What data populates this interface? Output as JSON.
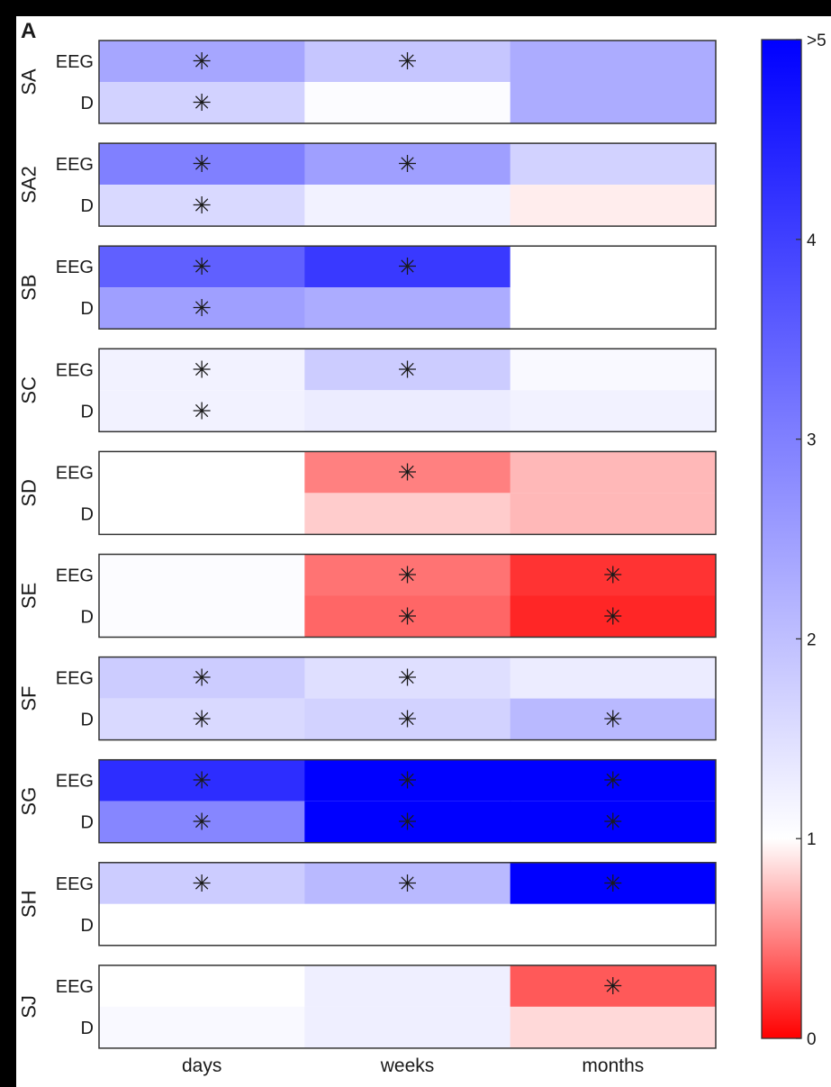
{
  "panel_label": "A",
  "chart_data": {
    "type": "heatmap",
    "columns": [
      "days",
      "weeks",
      "months"
    ],
    "row_labels": [
      "EEG",
      "D"
    ],
    "subjects": [
      {
        "name": "SA",
        "values": [
          [
            2.4,
            1.9,
            2.3
          ],
          [
            1.7,
            1.05,
            2.3
          ]
        ],
        "significant": [
          [
            true,
            true,
            false
          ],
          [
            true,
            false,
            false
          ]
        ]
      },
      {
        "name": "SA2",
        "values": [
          [
            3.0,
            2.5,
            1.7
          ],
          [
            1.6,
            1.2,
            0.93
          ]
        ],
        "significant": [
          [
            true,
            true,
            false
          ],
          [
            true,
            false,
            false
          ]
        ]
      },
      {
        "name": "SB",
        "values": [
          [
            3.5,
            4.1,
            1.0
          ],
          [
            2.5,
            2.3,
            1.0
          ]
        ],
        "significant": [
          [
            true,
            true,
            false
          ],
          [
            true,
            false,
            false
          ]
        ]
      },
      {
        "name": "SC",
        "values": [
          [
            1.2,
            1.8,
            1.1
          ],
          [
            1.2,
            1.3,
            1.2
          ]
        ],
        "significant": [
          [
            true,
            true,
            false
          ],
          [
            true,
            false,
            false
          ]
        ]
      },
      {
        "name": "SD",
        "values": [
          [
            1.0,
            0.5,
            0.72
          ],
          [
            1.0,
            0.8,
            0.72
          ]
        ],
        "significant": [
          [
            false,
            true,
            false
          ],
          [
            false,
            false,
            false
          ]
        ]
      },
      {
        "name": "SE",
        "values": [
          [
            1.05,
            0.45,
            0.2
          ],
          [
            1.05,
            0.4,
            0.15
          ]
        ],
        "significant": [
          [
            false,
            true,
            true
          ],
          [
            false,
            true,
            true
          ]
        ]
      },
      {
        "name": "SF",
        "values": [
          [
            1.8,
            1.5,
            1.3
          ],
          [
            1.6,
            1.7,
            2.1
          ]
        ],
        "significant": [
          [
            true,
            true,
            false
          ],
          [
            true,
            true,
            true
          ]
        ]
      },
      {
        "name": "SG",
        "values": [
          [
            4.3,
            5.2,
            5.2
          ],
          [
            2.9,
            5.2,
            5.2
          ]
        ],
        "significant": [
          [
            true,
            true,
            true
          ],
          [
            true,
            true,
            true
          ]
        ]
      },
      {
        "name": "SH",
        "values": [
          [
            1.8,
            2.1,
            5.0
          ],
          [
            1.0,
            1.0,
            1.0
          ]
        ],
        "significant": [
          [
            true,
            true,
            true
          ],
          [
            false,
            false,
            false
          ]
        ]
      },
      {
        "name": "SJ",
        "values": [
          [
            1.0,
            1.25,
            0.35
          ],
          [
            1.1,
            1.25,
            0.85
          ]
        ],
        "significant": [
          [
            false,
            false,
            true
          ],
          [
            false,
            false,
            false
          ]
        ]
      }
    ],
    "colorbar": {
      "range": [
        0,
        5
      ],
      "ticks": [
        "0",
        "1",
        "2",
        "3",
        "4",
        ">5"
      ],
      "colors": {
        "low": "#ff0000",
        "neutral": "#ffffff",
        "high": "#0000ff"
      },
      "neutral_value": 1
    },
    "marker": "✳"
  }
}
